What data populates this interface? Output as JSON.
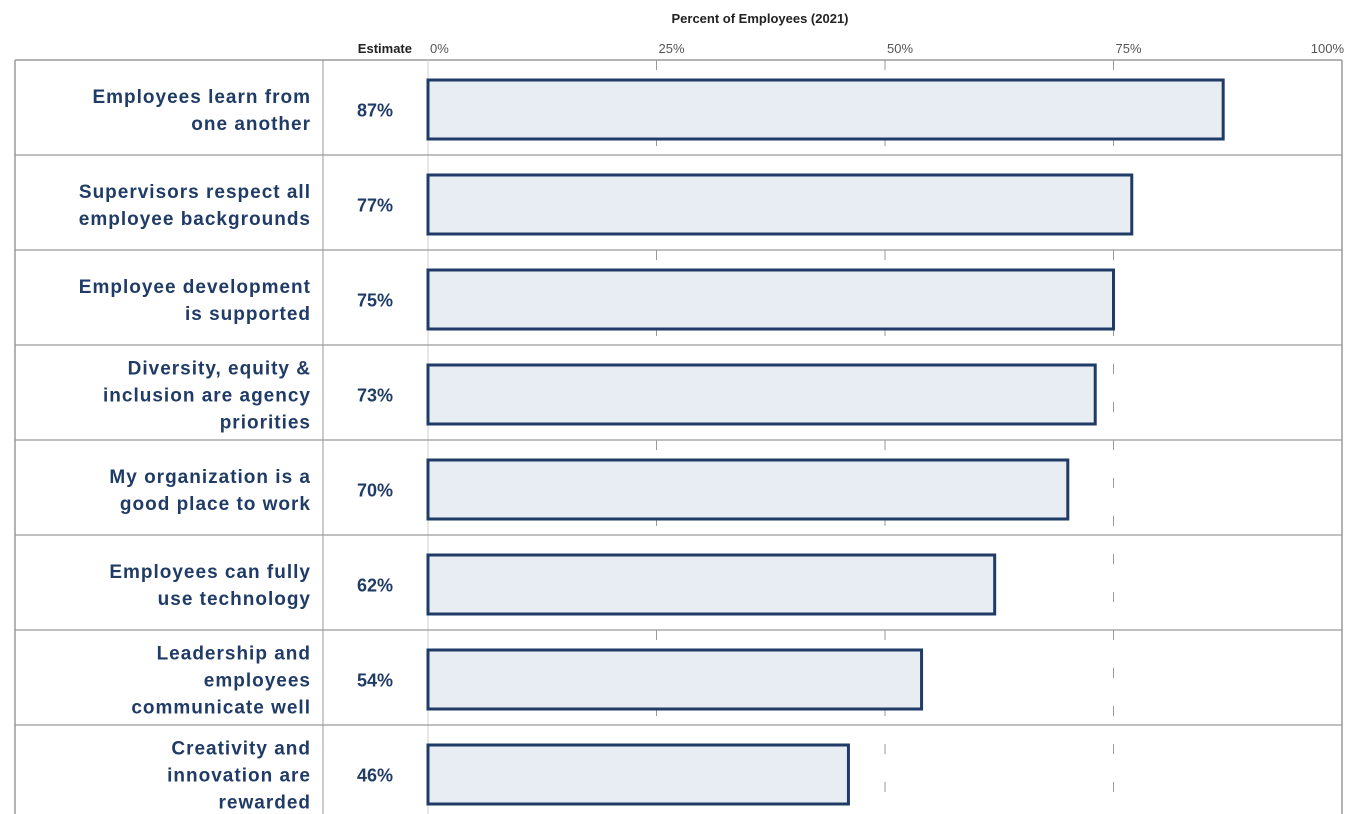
{
  "chart_data": {
    "type": "bar",
    "orientation": "horizontal",
    "title": "Percent of Employees (2021)",
    "estimate_header": "Estimate",
    "categories": [
      [
        "Employees learn from",
        "one another"
      ],
      [
        "Supervisors respect all",
        "employee backgrounds"
      ],
      [
        "Employee development",
        "is supported"
      ],
      [
        "Diversity, equity &",
        "inclusion are agency",
        "priorities"
      ],
      [
        "My organization is a",
        "good place to work"
      ],
      [
        "Employees can fully",
        "use technology"
      ],
      [
        "Leadership and",
        "employees",
        "communicate well"
      ],
      [
        "Creativity and",
        "innovation are",
        "rewarded"
      ]
    ],
    "values": [
      87,
      77,
      75,
      73,
      70,
      62,
      54,
      46
    ],
    "value_labels": [
      "87%",
      "77%",
      "75%",
      "73%",
      "70%",
      "62%",
      "54%",
      "46%"
    ],
    "xlim": [
      0,
      100
    ],
    "x_ticks": [
      0,
      25,
      50,
      75,
      100
    ],
    "x_tick_labels": [
      "0%",
      "25%",
      "50%",
      "75%",
      "100%"
    ],
    "grid": "vertical-dashed",
    "bar_fill": "#e8edf4",
    "bar_stroke": "#1f3b66"
  }
}
